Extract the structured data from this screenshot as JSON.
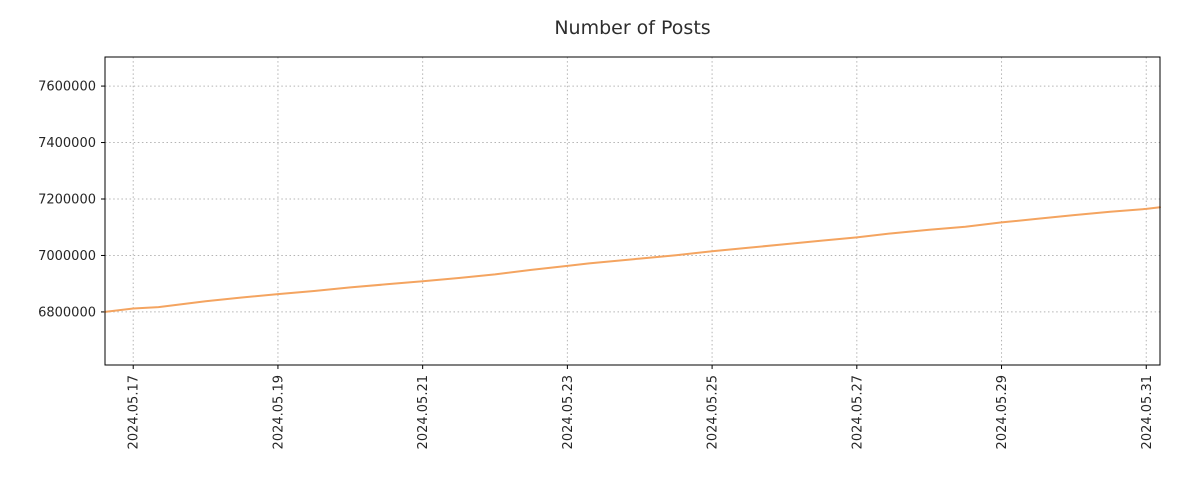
{
  "chart_data": {
    "type": "line",
    "title": "Number of Posts",
    "xlabel": "",
    "ylabel": "",
    "grid": true,
    "legend": "none",
    "line_color": "#f4a460",
    "xlim_days": [
      -0.39,
      14.19
    ],
    "ylim": [
      6612000,
      7703000
    ],
    "xticks": {
      "days": [
        0,
        2,
        4,
        6,
        8,
        10,
        12,
        14
      ],
      "labels": [
        "2024.05.17",
        "2024.05.19",
        "2024.05.21",
        "2024.05.23",
        "2024.05.25",
        "2024.05.27",
        "2024.05.29",
        "2024.05.31"
      ]
    },
    "yticks": {
      "values": [
        6800000,
        7000000,
        7200000,
        7400000,
        7600000
      ],
      "labels": [
        "6800000",
        "7000000",
        "7200000",
        "7400000",
        "7600000"
      ]
    },
    "series": [
      {
        "name": "posts",
        "points": [
          [
            -0.39,
            6800000
          ],
          [
            0,
            6812000
          ],
          [
            0.35,
            6817000
          ],
          [
            1,
            6838000
          ],
          [
            1.5,
            6851000
          ],
          [
            2,
            6863000
          ],
          [
            2.5,
            6874000
          ],
          [
            3,
            6887000
          ],
          [
            3.5,
            6898000
          ],
          [
            4,
            6909000
          ],
          [
            4.5,
            6920000
          ],
          [
            5,
            6933000
          ],
          [
            5.5,
            6949000
          ],
          [
            6,
            6963000
          ],
          [
            6.3,
            6972000
          ],
          [
            7,
            6989000
          ],
          [
            7.5,
            7001000
          ],
          [
            8,
            7015000
          ],
          [
            8.5,
            7027000
          ],
          [
            9,
            7040000
          ],
          [
            9.5,
            7052000
          ],
          [
            10,
            7064000
          ],
          [
            10.5,
            7079000
          ],
          [
            11,
            7091000
          ],
          [
            11.5,
            7102000
          ],
          [
            12,
            7117000
          ],
          [
            12.5,
            7130000
          ],
          [
            13,
            7143000
          ],
          [
            13.5,
            7155000
          ],
          [
            14,
            7165000
          ],
          [
            14.19,
            7171000
          ]
        ]
      }
    ]
  }
}
